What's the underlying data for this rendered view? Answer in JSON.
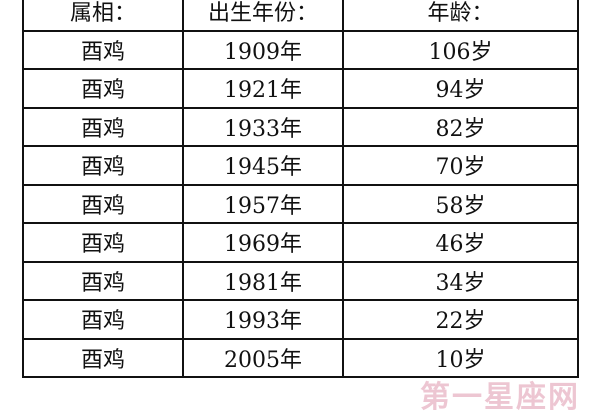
{
  "headers": [
    "属相：",
    "出生年份：",
    "年龄："
  ],
  "rows": [
    [
      "酉鸡",
      "1909年",
      "106岁"
    ],
    [
      "酉鸡",
      "1921年",
      "94岁"
    ],
    [
      "酉鸡",
      "1933年",
      "82岁"
    ],
    [
      "酉鸡",
      "1945年",
      "70岁"
    ],
    [
      "酉鸡",
      "1957年",
      "58岁"
    ],
    [
      "酉鸡",
      "1969年",
      "46岁"
    ],
    [
      "酉鸡",
      "1981年",
      "34岁"
    ],
    [
      "酉鸡",
      "1993年",
      "22岁"
    ],
    [
      "酉鸡",
      "2005年",
      "10岁"
    ]
  ],
  "watermark": "第一星座网"
}
